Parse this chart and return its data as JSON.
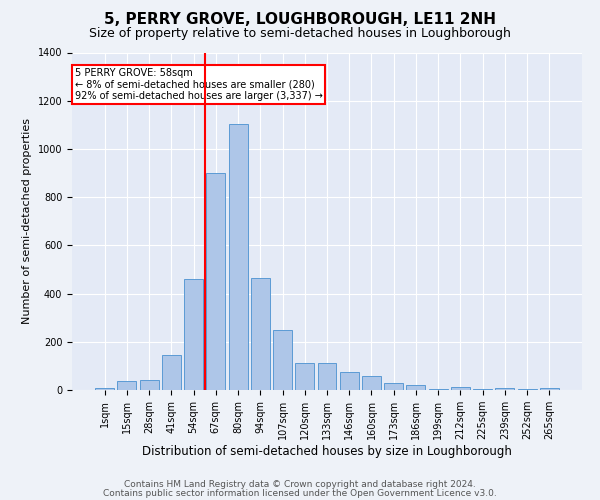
{
  "title": "5, PERRY GROVE, LOUGHBOROUGH, LE11 2NH",
  "subtitle": "Size of property relative to semi-detached houses in Loughborough",
  "xlabel": "Distribution of semi-detached houses by size in Loughborough",
  "ylabel": "Number of semi-detached properties",
  "footer1": "Contains HM Land Registry data © Crown copyright and database right 2024.",
  "footer2": "Contains public sector information licensed under the Open Government Licence v3.0.",
  "categories": [
    "1sqm",
    "15sqm",
    "28sqm",
    "41sqm",
    "54sqm",
    "67sqm",
    "80sqm",
    "94sqm",
    "107sqm",
    "120sqm",
    "133sqm",
    "146sqm",
    "160sqm",
    "173sqm",
    "186sqm",
    "199sqm",
    "212sqm",
    "225sqm",
    "239sqm",
    "252sqm",
    "265sqm"
  ],
  "values": [
    10,
    38,
    40,
    145,
    460,
    900,
    1105,
    465,
    248,
    110,
    110,
    73,
    58,
    28,
    22,
    5,
    12,
    5,
    10,
    5,
    10
  ],
  "bar_color": "#aec6e8",
  "bar_edge_color": "#5b9bd5",
  "marker_line_color": "red",
  "annotation_text": "5 PERRY GROVE: 58sqm\n← 8% of semi-detached houses are smaller (280)\n92% of semi-detached houses are larger (3,337) →",
  "ylim": [
    0,
    1400
  ],
  "background_color": "#eef2f8",
  "plot_background": "#e4eaf6",
  "grid_color": "white",
  "title_fontsize": 11,
  "subtitle_fontsize": 9,
  "xlabel_fontsize": 8.5,
  "ylabel_fontsize": 8,
  "tick_fontsize": 7,
  "footer_fontsize": 6.5
}
